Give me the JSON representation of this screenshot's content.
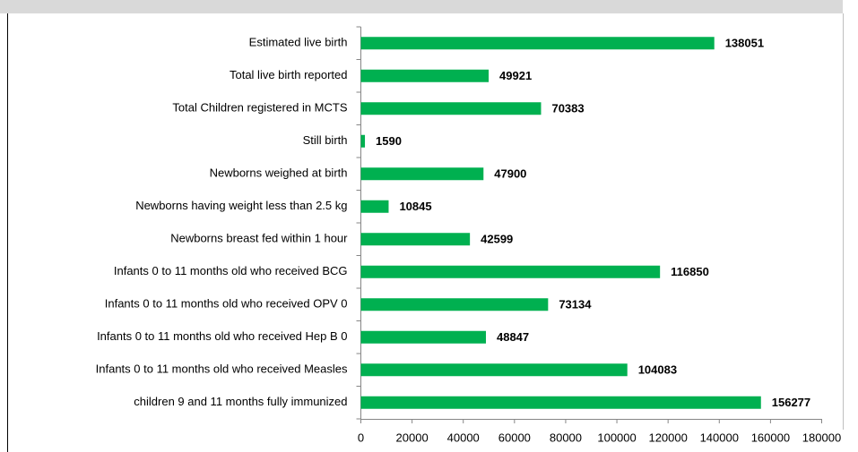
{
  "chart_data": {
    "type": "bar",
    "orientation": "horizontal",
    "categories": [
      "Estimated live birth",
      "Total live birth reported",
      "Total Children registered in MCTS",
      "Still birth",
      "Newborns weighed at birth",
      "Newborns having weight less than 2.5 kg",
      "Newborns breast fed within 1 hour",
      "Infants 0 to 11 months old who received BCG",
      "Infants 0 to 11 months old who received OPV 0",
      "Infants 0 to 11 months old who received Hep B 0",
      "Infants 0 to 11 months old who received Measles",
      "children 9 and 11 months fully immunized"
    ],
    "values": [
      138051,
      49921,
      70383,
      1590,
      47900,
      10845,
      42599,
      116850,
      73134,
      48847,
      104083,
      156277
    ],
    "color": "#00b050",
    "xlim": [
      0,
      180000
    ],
    "xticks": [
      0,
      20000,
      40000,
      60000,
      80000,
      100000,
      120000,
      140000,
      160000,
      180000
    ]
  }
}
